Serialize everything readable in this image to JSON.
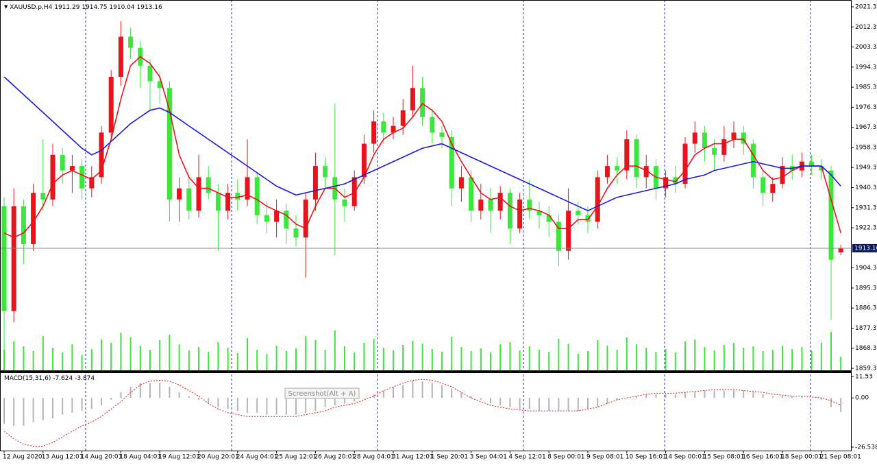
{
  "chart_data": {
    "type": "candlestick",
    "symbol": "XAUUSD.p,H4",
    "up_color": "#e8131b",
    "down_color": "#3ce63c",
    "open": [
      1932,
      1885,
      1932,
      1915,
      1938,
      1935,
      1955,
      1948,
      1950,
      1940,
      1945,
      1965,
      1990,
      2008,
      2003,
      1995,
      1988,
      1985,
      1935,
      1940,
      1930,
      1945,
      1938,
      1930,
      1938,
      1935,
      1945,
      1928,
      1925,
      1930,
      1922,
      1918,
      1935,
      1950,
      1945,
      1935,
      1932,
      1945,
      1960,
      1970,
      1965,
      1968,
      1975,
      1985,
      1972,
      1965,
      1963,
      1940,
      1945,
      1930,
      1935,
      1930,
      1938,
      1922,
      1935,
      1930,
      1928,
      1925,
      1912,
      1930,
      1928,
      1925,
      1945,
      1950,
      1948,
      1962,
      1945,
      1950,
      1940,
      1945,
      1942,
      1960,
      1965,
      1958,
      1955,
      1962,
      1965,
      1960,
      1945,
      1938,
      1942,
      1950,
      1948,
      1952,
      1950,
      1948,
      1911.29
    ],
    "high": [
      1936,
      1940,
      1935,
      1942,
      1962,
      1960,
      1958,
      1955,
      1953,
      1950,
      1968,
      1993,
      2015,
      2012,
      2006,
      1998,
      1992,
      1988,
      1945,
      1946,
      1955,
      1950,
      1942,
      1942,
      1944,
      1962,
      1947,
      1934,
      1935,
      1933,
      1928,
      1938,
      1956,
      1954,
      1978,
      1940,
      1948,
      1964,
      1975,
      1974,
      1972,
      1980,
      1995,
      1990,
      1975,
      1968,
      1966,
      1950,
      1948,
      1942,
      1940,
      1941,
      1940,
      1938,
      1944,
      1934,
      1932,
      1928,
      1940,
      1934,
      1932,
      1948,
      1955,
      1954,
      1966,
      1964,
      1955,
      1953,
      1948,
      1950,
      1963,
      1970,
      1968,
      1962,
      1968,
      1970,
      1968,
      1962,
      1948,
      1945,
      1954,
      1955,
      1956,
      1955,
      1953,
      1950,
      1914.75
    ],
    "low": [
      1862,
      1880,
      1906,
      1912,
      1930,
      1932,
      1942,
      1938,
      1935,
      1936,
      1942,
      1962,
      1986,
      1998,
      1985,
      1975,
      1978,
      1925,
      1925,
      1926,
      1927,
      1935,
      1912,
      1926,
      1930,
      1932,
      1924,
      1920,
      1918,
      1915,
      1914,
      1900,
      1930,
      1940,
      1910,
      1925,
      1930,
      1942,
      1956,
      1960,
      1962,
      1964,
      1972,
      1968,
      1960,
      1958,
      1932,
      1934,
      1925,
      1926,
      1920,
      1926,
      1915,
      1920,
      1926,
      1922,
      1918,
      1905,
      1908,
      1924,
      1920,
      1922,
      1942,
      1942,
      1944,
      1940,
      1940,
      1935,
      1936,
      1938,
      1940,
      1956,
      1952,
      1948,
      1952,
      1958,
      1955,
      1940,
      1932,
      1934,
      1940,
      1944,
      1945,
      1946,
      1944,
      1881,
      1910.04
    ],
    "close": [
      1885,
      1932,
      1915,
      1938,
      1935,
      1955,
      1948,
      1950,
      1940,
      1945,
      1965,
      1990,
      2008,
      2003,
      1995,
      1988,
      1985,
      1935,
      1940,
      1930,
      1945,
      1938,
      1930,
      1938,
      1935,
      1945,
      1928,
      1925,
      1930,
      1922,
      1918,
      1935,
      1950,
      1945,
      1935,
      1932,
      1945,
      1960,
      1970,
      1965,
      1968,
      1975,
      1985,
      1972,
      1965,
      1963,
      1940,
      1945,
      1930,
      1935,
      1930,
      1938,
      1922,
      1935,
      1930,
      1928,
      1925,
      1912,
      1930,
      1928,
      1925,
      1945,
      1950,
      1948,
      1962,
      1945,
      1950,
      1940,
      1945,
      1942,
      1960,
      1965,
      1958,
      1955,
      1962,
      1965,
      1960,
      1945,
      1938,
      1942,
      1950,
      1948,
      1952,
      1950,
      1948,
      1908,
      1913.16
    ],
    "moving_averages": [
      {
        "color": "#e8131b",
        "values": [
          1920,
          1918,
          1920,
          1925,
          1932,
          1942,
          1946,
          1948,
          1946,
          1944,
          1948,
          1962,
          1980,
          1995,
          1999,
          1996,
          1990,
          1975,
          1955,
          1945,
          1940,
          1940,
          1938,
          1936,
          1936,
          1937,
          1935,
          1932,
          1930,
          1928,
          1924,
          1922,
          1932,
          1940,
          1940,
          1936,
          1938,
          1945,
          1955,
          1962,
          1965,
          1967,
          1972,
          1978,
          1975,
          1970,
          1960,
          1952,
          1945,
          1938,
          1935,
          1936,
          1932,
          1930,
          1931,
          1930,
          1928,
          1922,
          1922,
          1926,
          1926,
          1932,
          1940,
          1946,
          1950,
          1950,
          1948,
          1945,
          1944,
          1943,
          1948,
          1955,
          1958,
          1960,
          1960,
          1962,
          1962,
          1955,
          1948,
          1944,
          1945,
          1948,
          1950,
          1950,
          1950,
          1935,
          1920
        ]
      },
      {
        "color": "#1a1ad8",
        "values": [
          1990,
          1986,
          1982,
          1978,
          1974,
          1970,
          1966,
          1962,
          1958,
          1955,
          1957,
          1961,
          1965,
          1969,
          1972,
          1975,
          1976,
          1974,
          1971,
          1968,
          1965,
          1962,
          1959,
          1956,
          1953,
          1950,
          1947,
          1944,
          1941,
          1939,
          1937,
          1938,
          1939,
          1940,
          1941,
          1942,
          1944,
          1946,
          1948,
          1950,
          1952,
          1954,
          1956,
          1958,
          1959,
          1960,
          1958,
          1956,
          1954,
          1952,
          1950,
          1948,
          1946,
          1944,
          1942,
          1940,
          1938,
          1936,
          1934,
          1932,
          1930,
          1932,
          1934,
          1936,
          1937,
          1938,
          1939,
          1940,
          1941,
          1942,
          1944,
          1945,
          1946,
          1948,
          1949,
          1950,
          1951,
          1952,
          1951,
          1950,
          1949,
          1949,
          1950,
          1950,
          1950,
          1946,
          1941
        ]
      }
    ],
    "volume": {
      "color": "#3ce63c",
      "values": [
        30,
        42,
        35,
        28,
        50,
        33,
        26,
        38,
        22,
        31,
        45,
        40,
        55,
        48,
        36,
        30,
        44,
        52,
        38,
        29,
        34,
        27,
        41,
        33,
        25,
        47,
        30,
        24,
        36,
        28,
        32,
        50,
        44,
        30,
        58,
        35,
        26,
        40,
        46,
        33,
        29,
        37,
        43,
        39,
        31,
        27,
        49,
        34,
        28,
        32,
        26,
        38,
        41,
        29,
        35,
        30,
        27,
        46,
        39,
        24,
        28,
        44,
        36,
        30,
        48,
        38,
        33,
        27,
        31,
        26,
        42,
        45,
        34,
        29,
        37,
        40,
        33,
        35,
        28,
        30,
        36,
        31,
        34,
        29,
        40,
        56,
        20
      ]
    },
    "ylim": [
      1859.35,
      2021.35
    ],
    "yticks": [
      2021.35,
      2012.35,
      2003.35,
      1994.35,
      1985.35,
      1976.35,
      1967.35,
      1958.35,
      1949.35,
      1940.35,
      1931.35,
      1922.35,
      1904.35,
      1895.35,
      1886.35,
      1877.35,
      1868.35,
      1859.35
    ],
    "xticks": [
      {
        "value": 0,
        "label": "12 Aug 2020"
      },
      {
        "value": 4,
        "label": "13 Aug 12:01"
      },
      {
        "value": 8,
        "label": "14 Aug 20:01"
      },
      {
        "value": 12,
        "label": "18 Aug 04:01"
      },
      {
        "value": 16,
        "label": "19 Aug 12:01"
      },
      {
        "value": 20,
        "label": "20 Aug 20:01"
      },
      {
        "value": 24,
        "label": "24 Aug 04:01"
      },
      {
        "value": 28,
        "label": "25 Aug 12:01"
      },
      {
        "value": 32,
        "label": "26 Aug 20:01"
      },
      {
        "value": 36,
        "label": "28 Aug 04:01"
      },
      {
        "value": 40,
        "label": "31 Aug 12:01"
      },
      {
        "value": 44,
        "label": "1 Sep 20:01"
      },
      {
        "value": 48,
        "label": "3 Sep 04:01"
      },
      {
        "value": 52,
        "label": "4 Sep 12:01"
      },
      {
        "value": 56,
        "label": "8 Sep 00:01"
      },
      {
        "value": 60,
        "label": "9 Sep 08:01"
      },
      {
        "value": 64,
        "label": "10 Sep 16:01"
      },
      {
        "value": 68,
        "label": "14 Sep 00:01"
      },
      {
        "value": 72,
        "label": "15 Sep 08:01"
      },
      {
        "value": 76,
        "label": "16 Sep 16:01"
      },
      {
        "value": 80,
        "label": "18 Sep 00:01"
      },
      {
        "value": 84,
        "label": "21 Sep 08:01"
      }
    ],
    "indicator": {
      "type": "macd",
      "label": "MACD(15,31,6)",
      "ylim": [
        -26.538,
        11.53
      ],
      "yticks": [
        11.53,
        {
          "value": 0,
          "label": "0.00"
        },
        -26.538
      ],
      "histogram": {
        "color": "#b4b4b4",
        "values": [
          -14,
          -15,
          -15,
          -13,
          -12,
          -11,
          -9,
          -8,
          -7,
          -6,
          -4,
          -1,
          3,
          6,
          8,
          8,
          8,
          6,
          3,
          1,
          -1,
          -3,
          -5,
          -6,
          -7,
          -8,
          -8,
          -9,
          -9,
          -9,
          -9,
          -8,
          -7,
          -5,
          -4,
          -3,
          -2,
          0,
          2,
          4,
          6,
          7,
          9,
          9,
          8,
          7,
          5,
          3,
          1,
          -1,
          -3,
          -4,
          -5,
          -6,
          -6,
          -7,
          -7,
          -7,
          -7,
          -7,
          -6,
          -5,
          -3,
          -1,
          0,
          1,
          2,
          2,
          2,
          2,
          3,
          3,
          4,
          4,
          4,
          4,
          4,
          3,
          2,
          1,
          1,
          1,
          1,
          0,
          -1,
          -5,
          -7.624
        ]
      },
      "signal": {
        "color": "#e8131b",
        "values": [
          -18,
          -22,
          -25,
          -26,
          -26,
          -24,
          -21,
          -18,
          -15,
          -13,
          -10,
          -6,
          -2,
          3,
          7,
          9,
          9.5,
          9,
          7,
          4,
          1,
          -3,
          -6,
          -8,
          -9,
          -10,
          -10,
          -10,
          -10,
          -10,
          -10,
          -9,
          -8,
          -7,
          -5,
          -4,
          -3,
          -1,
          1,
          4,
          6,
          8,
          9.5,
          10,
          9.5,
          8,
          6,
          3,
          0,
          -2,
          -4,
          -5,
          -6,
          -6.5,
          -7,
          -7,
          -7,
          -7,
          -7,
          -7,
          -6,
          -5,
          -3,
          -1,
          0,
          1,
          2,
          2.5,
          2.5,
          2.5,
          3,
          3.5,
          4,
          4.5,
          4.5,
          4.5,
          4,
          3.5,
          3,
          2,
          1.5,
          1,
          1,
          0.5,
          0,
          -1.5,
          -3.874
        ]
      }
    },
    "overlay_text": "Screenshot(Alt + A)"
  }
}
